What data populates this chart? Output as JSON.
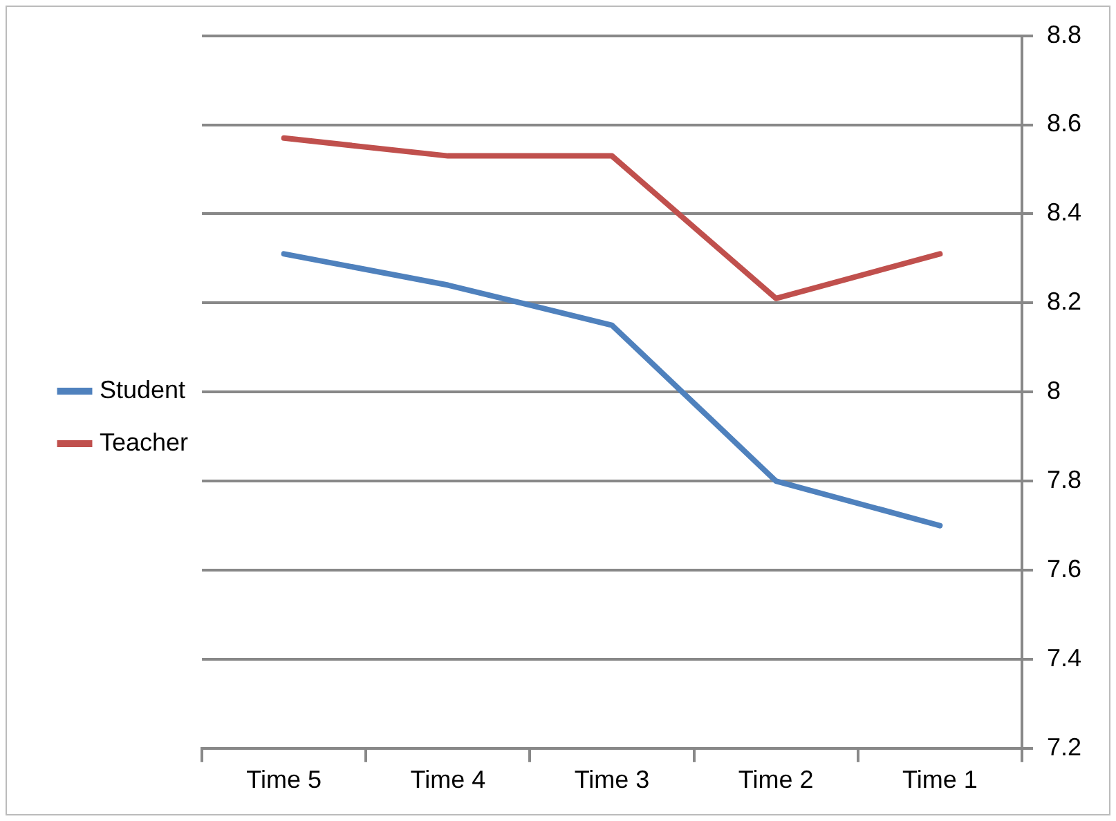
{
  "chart_data": {
    "type": "line",
    "categories": [
      "Time 5",
      "Time 4",
      "Time 3",
      "Time 2",
      "Time 1"
    ],
    "series": [
      {
        "name": "Student",
        "color": "#4f81bd",
        "values": [
          8.31,
          8.24,
          8.15,
          7.8,
          7.7
        ]
      },
      {
        "name": "Teacher",
        "color": "#c0504d",
        "values": [
          8.57,
          8.53,
          8.53,
          8.21,
          8.31
        ]
      }
    ],
    "ylim": [
      7.2,
      8.8
    ],
    "yticks": [
      7.2,
      7.4,
      7.6,
      7.8,
      8,
      8.2,
      8.4,
      8.6,
      8.8
    ],
    "grid": "y",
    "legend": "left",
    "marker": "none",
    "line_style": "solid"
  }
}
